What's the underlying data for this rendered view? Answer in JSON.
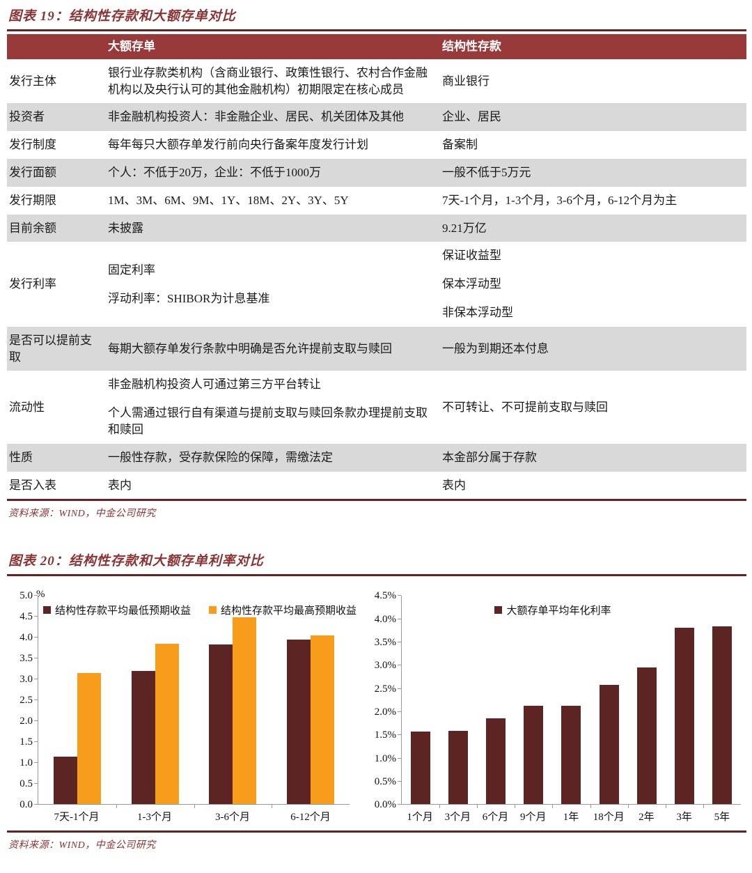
{
  "colors": {
    "accent_maroon": "#8B3333",
    "header_bg": "#993A3A",
    "row_shade": "#D9D9DA",
    "rule": "#6E1F1F",
    "bar_dark": "#5C2423",
    "bar_orange": "#F89C1C",
    "axis": "#999999"
  },
  "figure19": {
    "title": "图表 19：结构性存款和大额存单对比",
    "source": "资料来源：WIND，中金公司研究",
    "table": {
      "header_cds": "大额存单",
      "header_sd": "结构性存款",
      "rows": [
        {
          "label": "发行主体",
          "shaded": false,
          "cds": [
            "银行业存款类机构（含商业银行、政策性银行、农村合作金融机构以及央行认可的其他金融机构）初期限定在核心成员"
          ],
          "sd": [
            "商业银行"
          ]
        },
        {
          "label": "投资者",
          "shaded": true,
          "cds": [
            "非金融机构投资人：非金融企业、居民、机关团体及其他"
          ],
          "sd": [
            "企业、居民"
          ]
        },
        {
          "label": "发行制度",
          "shaded": false,
          "cds": [
            "每年每只大额存单发行前向央行备案年度发行计划"
          ],
          "sd": [
            "备案制"
          ]
        },
        {
          "label": "发行面额",
          "shaded": true,
          "cds": [
            "个人：不低于20万，企业：不低于1000万"
          ],
          "sd": [
            "一般不低于5万元"
          ]
        },
        {
          "label": "发行期限",
          "shaded": false,
          "cds": [
            "1M、3M、6M、9M、1Y、18M、2Y、3Y、5Y"
          ],
          "sd": [
            "7天-1个月，1-3个月，3-6个月，6-12个月为主"
          ]
        },
        {
          "label": "目前余额",
          "shaded": true,
          "cds": [
            "未披露"
          ],
          "sd": [
            "9.21万亿"
          ]
        },
        {
          "label": "发行利率",
          "shaded": false,
          "cds": [
            "固定利率",
            "浮动利率：SHIBOR为计息基准"
          ],
          "sd": [
            "保证收益型",
            "保本浮动型",
            "非保本浮动型"
          ]
        },
        {
          "label": "是否可以提前支取",
          "shaded": true,
          "cds": [
            "每期大额存单发行条款中明确是否允许提前支取与赎回"
          ],
          "sd": [
            "一般为到期还本付息"
          ]
        },
        {
          "label": "流动性",
          "shaded": false,
          "cds": [
            "非金融机构投资人可通过第三方平台转让",
            "个人需通过银行自有渠道与提前支取与赎回条款办理提前支取和赎回"
          ],
          "sd": [
            "不可转让、不可提前支取与赎回"
          ]
        },
        {
          "label": "性质",
          "shaded": true,
          "cds": [
            "一般性存款，受存款保险的保障，需缴法定"
          ],
          "sd": [
            "本金部分属于存款"
          ]
        },
        {
          "label": "是否入表",
          "shaded": false,
          "cds": [
            "表内"
          ],
          "sd": [
            "表内"
          ]
        }
      ]
    }
  },
  "figure20": {
    "title": "图表 20：结构性存款和大额存单利率对比",
    "source": "资料来源：WIND，中金公司研究"
  },
  "chart_data": [
    {
      "type": "bar",
      "title": "",
      "xlabel": "",
      "ylabel": "",
      "y_unit": "%",
      "categories": [
        "7天-1个月",
        "1-3个月",
        "3-6个月",
        "6-12个月"
      ],
      "series": [
        {
          "name": "结构性存款平均最低预期收益",
          "color": "#5C2423",
          "values": [
            1.15,
            3.2,
            3.83,
            3.95
          ]
        },
        {
          "name": "结构性存款平均最高预期收益",
          "color": "#F89C1C",
          "values": [
            3.15,
            3.85,
            4.48,
            4.05
          ]
        }
      ],
      "ylim": [
        0,
        5.0
      ],
      "yticks": [
        "5.0",
        "4.5",
        "4.0",
        "3.5",
        "3.0",
        "2.5",
        "2.0",
        "1.5",
        "1.0",
        "0.5",
        "0.0"
      ],
      "grid": false,
      "legend_position": "top-left"
    },
    {
      "type": "bar",
      "title": "",
      "xlabel": "",
      "ylabel": "",
      "y_unit": "",
      "categories": [
        "1个月",
        "3个月",
        "6个月",
        "9个月",
        "1年",
        "18个月",
        "2年",
        "3年",
        "5年"
      ],
      "series": [
        {
          "name": "大额存单平均年化利率",
          "color": "#5C2423",
          "values": [
            1.57,
            1.58,
            1.85,
            2.12,
            2.12,
            2.58,
            2.95,
            3.81,
            3.84
          ]
        }
      ],
      "ylim": [
        0,
        4.5
      ],
      "yticks": [
        "4.5%",
        "4.0%",
        "3.5%",
        "3.0%",
        "2.5%",
        "2.0%",
        "1.5%",
        "1.0%",
        "0.5%",
        "0.0%"
      ],
      "grid": false,
      "legend_position": "top-center"
    }
  ]
}
